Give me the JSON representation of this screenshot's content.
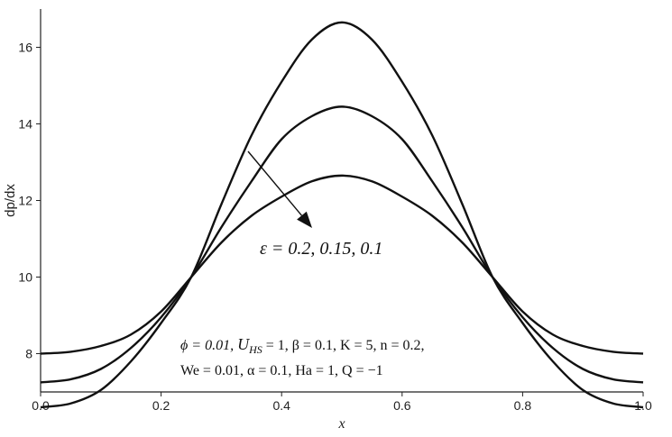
{
  "chart_data": {
    "type": "line",
    "xlabel": "x",
    "ylabel": "dp/dx",
    "xlim": [
      0.0,
      1.0
    ],
    "ylim": [
      7.0,
      17.0
    ],
    "x_ticks": [
      "0.0",
      "0.2",
      "0.4",
      "0.6",
      "0.8",
      "1.0"
    ],
    "y_ticks": [
      "8",
      "10",
      "12",
      "14",
      "16"
    ],
    "x_tick_values": [
      0.0,
      0.2,
      0.4,
      0.6,
      0.8,
      1.0
    ],
    "y_tick_values": [
      8,
      10,
      12,
      14,
      16
    ],
    "grid": false,
    "line_color": "#111111",
    "x": [
      0.0,
      0.05,
      0.1,
      0.15,
      0.2,
      0.25,
      0.3,
      0.35,
      0.4,
      0.45,
      0.5,
      0.55,
      0.6,
      0.65,
      0.7,
      0.75,
      0.8,
      0.85,
      0.9,
      0.95,
      1.0
    ],
    "series": [
      {
        "values": [
          8.0,
          8.05,
          8.2,
          8.5,
          9.1,
          10.0,
          10.9,
          11.6,
          12.1,
          12.5,
          12.65,
          12.5,
          12.1,
          11.6,
          10.9,
          10.0,
          9.1,
          8.5,
          8.2,
          8.05,
          8.0
        ]
      },
      {
        "values": [
          7.25,
          7.33,
          7.6,
          8.15,
          8.95,
          10.0,
          11.3,
          12.5,
          13.6,
          14.2,
          14.45,
          14.2,
          13.6,
          12.5,
          11.3,
          10.0,
          8.95,
          8.15,
          7.6,
          7.33,
          7.25
        ]
      },
      {
        "values": [
          6.6,
          6.7,
          7.05,
          7.8,
          8.8,
          10.0,
          11.9,
          13.7,
          15.1,
          16.2,
          16.65,
          16.2,
          15.1,
          13.7,
          11.9,
          10.0,
          8.8,
          7.8,
          7.05,
          6.7,
          6.6
        ]
      }
    ],
    "annotations": {
      "epsilon": "ε = 0.2, 0.15, 0.1",
      "params_line1_a": "ϕ = 0.01, ",
      "params_line1_u": "U",
      "params_line1_sub": "HS",
      "params_line1_b": " = 1, β = 0.1, K = 5, n = 0.2,",
      "params_line2": "We = 0.01, α = 0.1, Ha = 1, Q = −1"
    }
  }
}
